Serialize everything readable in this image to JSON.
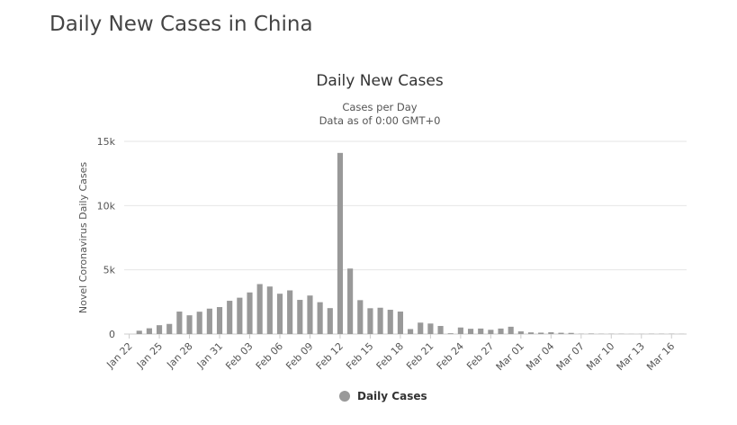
{
  "page": {
    "heading": "Daily New Cases in China"
  },
  "chart_data": {
    "type": "bar",
    "title": "Daily New Cases",
    "subtitle_lines": [
      "Cases per Day",
      "Data as of 0:00 GMT+0"
    ],
    "xlabel": "",
    "ylabel": "Novel Coronavirus Daily Cases",
    "ylim": [
      0,
      15000
    ],
    "yticks": [
      0,
      5000,
      10000,
      15000
    ],
    "ytick_labels": [
      "0",
      "5k",
      "10k",
      "15k"
    ],
    "categories": [
      "Jan 22",
      "Jan 23",
      "Jan 24",
      "Jan 25",
      "Jan 26",
      "Jan 27",
      "Jan 28",
      "Jan 29",
      "Jan 30",
      "Jan 31",
      "Feb 01",
      "Feb 02",
      "Feb 03",
      "Feb 04",
      "Feb 05",
      "Feb 06",
      "Feb 07",
      "Feb 08",
      "Feb 09",
      "Feb 10",
      "Feb 11",
      "Feb 12",
      "Feb 13",
      "Feb 14",
      "Feb 15",
      "Feb 16",
      "Feb 17",
      "Feb 18",
      "Feb 19",
      "Feb 20",
      "Feb 21",
      "Feb 22",
      "Feb 23",
      "Feb 24",
      "Feb 25",
      "Feb 26",
      "Feb 27",
      "Feb 28",
      "Feb 29",
      "Mar 01",
      "Mar 02",
      "Mar 03",
      "Mar 04",
      "Mar 05",
      "Mar 06",
      "Mar 07",
      "Mar 08",
      "Mar 09",
      "Mar 10",
      "Mar 11",
      "Mar 12",
      "Mar 13",
      "Mar 14",
      "Mar 15",
      "Mar 16",
      "Mar 17"
    ],
    "tick_labels_every": 3,
    "x_tick_labels": [
      "Jan 22",
      "Jan 25",
      "Jan 28",
      "Jan 31",
      "Feb 03",
      "Feb 06",
      "Feb 09",
      "Feb 12",
      "Feb 15",
      "Feb 18",
      "Feb 21",
      "Feb 24",
      "Feb 27",
      "Mar 01",
      "Mar 04",
      "Mar 07",
      "Mar 10",
      "Mar 13",
      "Mar 16"
    ],
    "series": [
      {
        "name": "Daily Cases",
        "color": "#999999",
        "values": [
          0,
          260,
          450,
          690,
          790,
          1750,
          1460,
          1740,
          1980,
          2100,
          2590,
          2830,
          3240,
          3890,
          3700,
          3140,
          3400,
          2660,
          3000,
          2480,
          2020,
          14100,
          5100,
          2640,
          2010,
          2050,
          1890,
          1750,
          390,
          890,
          820,
          630,
          60,
          510,
          410,
          430,
          330,
          430,
          570,
          210,
          130,
          110,
          140,
          100,
          90,
          20,
          40,
          20,
          20,
          20,
          10,
          10,
          20,
          20,
          20,
          10
        ]
      }
    ],
    "legend": {
      "position": "bottom-center",
      "items": [
        "Daily Cases"
      ]
    },
    "grid": true
  }
}
